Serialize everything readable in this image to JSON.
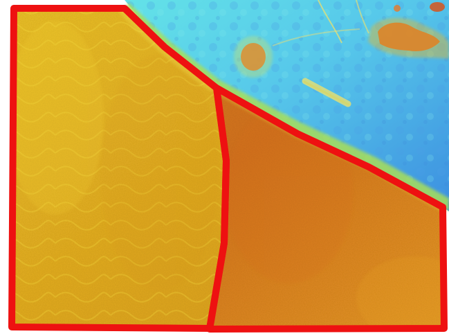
{
  "image": {
    "kind": "false-color thermal aerial image with outlined field zones",
    "palette": {
      "background": "#ffffff",
      "outline": "#ee1111",
      "zone_yellow": "#e8bf21",
      "zone_orange": "#d98a1e",
      "water_cyan": "#57d8e4",
      "water_blue": "#3b8fde",
      "vegetation_green": "#8bd86a",
      "hot_red": "#d75a26"
    }
  },
  "zones": [
    {
      "label": "field-zone-left",
      "fill_tone": "yellow-orange"
    },
    {
      "label": "field-zone-right",
      "fill_tone": "orange"
    }
  ]
}
